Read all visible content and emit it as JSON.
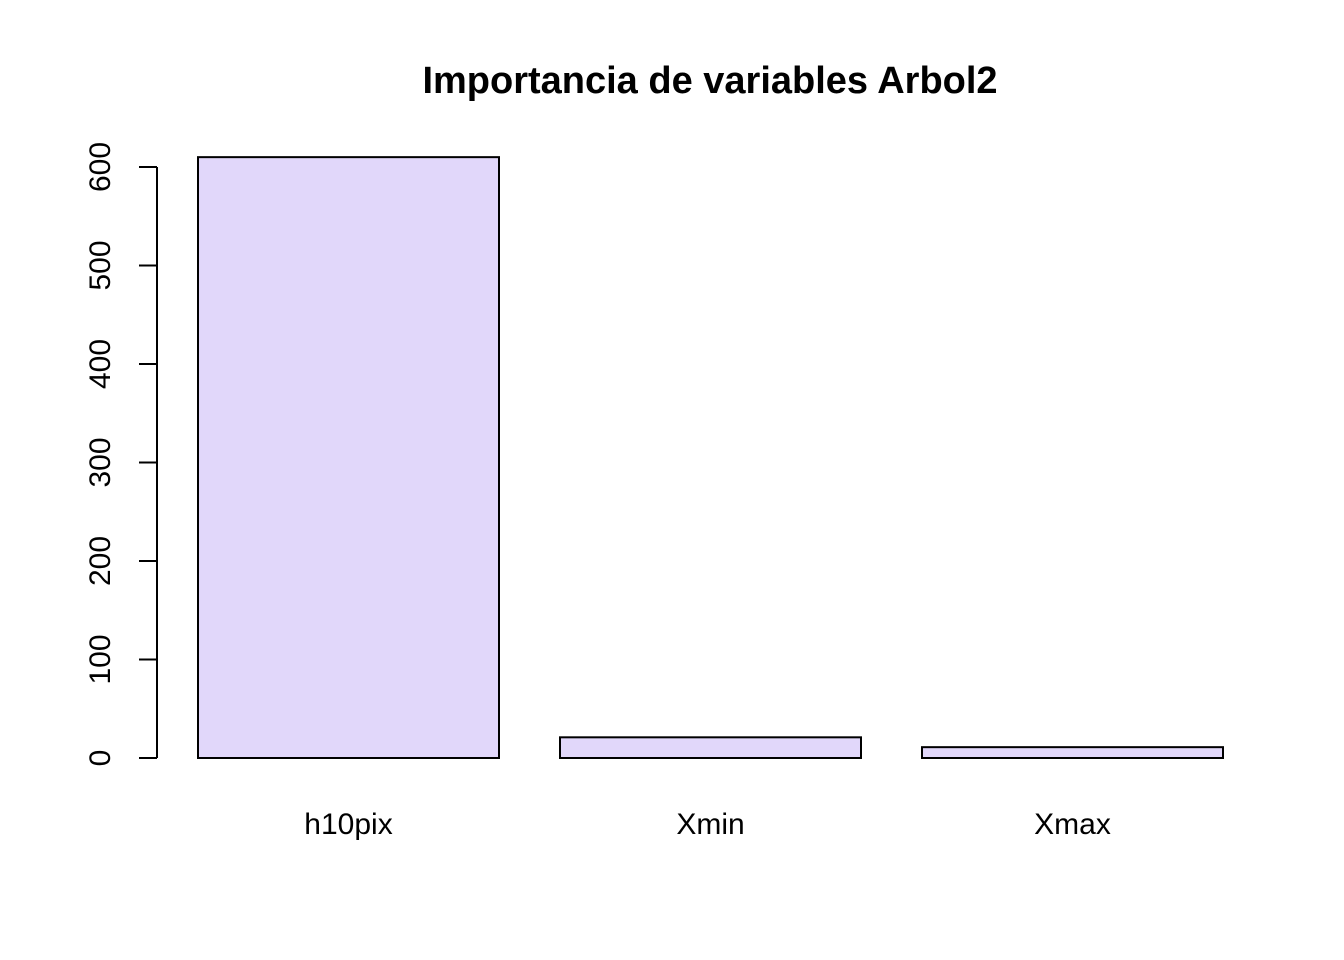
{
  "chart_data": {
    "type": "bar",
    "title": "Importancia de variables Arbol2",
    "xlabel": "",
    "ylabel": "",
    "categories": [
      "h10pix",
      "Xmin",
      "Xmax"
    ],
    "values": [
      610,
      21,
      11
    ],
    "ylim": [
      0,
      600
    ],
    "yticks": [
      0,
      100,
      200,
      300,
      400,
      500,
      600
    ],
    "bar_color": "#e1d7fa",
    "grid": false,
    "legend": "none"
  }
}
